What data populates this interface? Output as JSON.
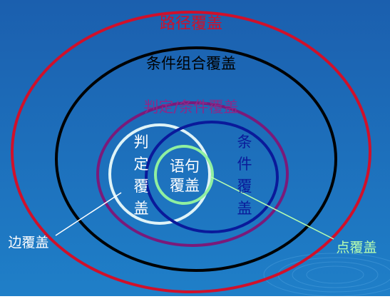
{
  "colors": {
    "background_top": "#1b5fae",
    "background_bottom": "#1f7fc8",
    "path_coverage": "#d0102a",
    "condition_combination": "#000000",
    "decision_condition": "#7a1a7a",
    "decision": "#dff3f7",
    "condition": "#0a1a9a",
    "statement": "#8ff0a0",
    "edge_label": "#ffffff",
    "node_label": "#b8ffb0"
  },
  "labels": {
    "path_coverage": "路径覆盖",
    "condition_combination_coverage": "条件组合覆盖",
    "decision_condition_coverage": "判定/条件覆盖",
    "decision_coverage": [
      "判",
      "定",
      "覆",
      "盖"
    ],
    "condition_coverage": [
      "条",
      "件",
      "覆",
      "盖"
    ],
    "statement_coverage": [
      "语句",
      "覆盖"
    ],
    "edge_coverage": "边覆盖",
    "node_coverage": "点覆盖"
  }
}
